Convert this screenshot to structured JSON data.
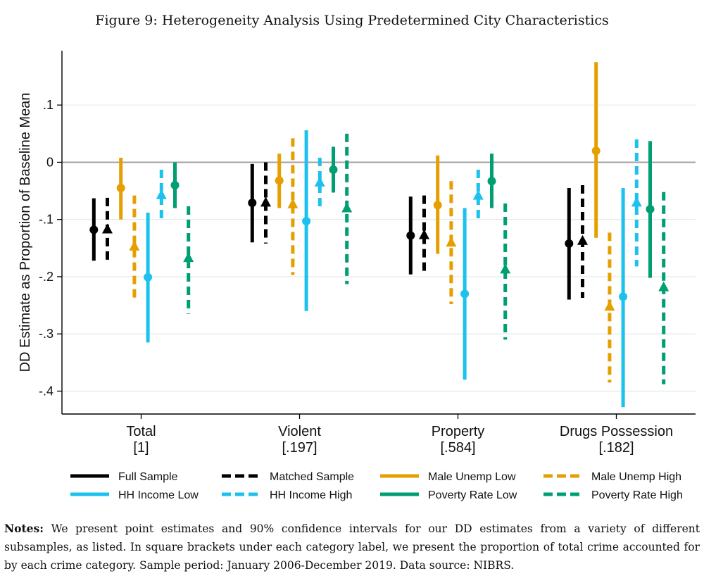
{
  "figure": {
    "title": "Figure 9: Heterogeneity Analysis Using Predetermined City Characteristics",
    "notes_label": "Notes:",
    "notes_text": "We present point estimates and 90% confidence intervals for our DD estimates from a variety of different subsamples, as listed. In square brackets under each category label, we present the proportion of total crime accounted for by each crime category. Sample period: January 2006-December 2019. Data source: NIBRS."
  },
  "chart_data": {
    "type": "errorbar",
    "ylabel": "DD Estimate as Proportion of Baseline Mean",
    "ylim": [
      -0.44,
      0.195
    ],
    "yticks": [
      0.1,
      0,
      -0.1,
      -0.2,
      -0.3,
      -0.4
    ],
    "ytick_labels": [
      ".1",
      "0",
      "-.1",
      "-.2",
      "-.3",
      "-.4"
    ],
    "zero_line": true,
    "grid": "horizontal",
    "categories": [
      {
        "name": "Total",
        "share": "[1]"
      },
      {
        "name": "Violent",
        "share": "[.197]"
      },
      {
        "name": "Property",
        "share": "[.584]"
      },
      {
        "name": "Drugs Possession",
        "share": "[.182]"
      }
    ],
    "colors": {
      "black": "#000000",
      "orange": "#E69F00",
      "blue": "#1CC1EE",
      "green": "#009E73"
    },
    "series": [
      {
        "name": "Full Sample",
        "color": "black",
        "dashed": false,
        "marker": "circle",
        "points": [
          {
            "est": -0.118,
            "lo": -0.172,
            "hi": -0.063
          },
          {
            "est": -0.071,
            "lo": -0.14,
            "hi": -0.003
          },
          {
            "est": -0.128,
            "lo": -0.196,
            "hi": -0.06
          },
          {
            "est": -0.142,
            "lo": -0.24,
            "hi": -0.045
          }
        ]
      },
      {
        "name": "Matched Sample",
        "color": "black",
        "dashed": true,
        "marker": "triangle",
        "points": [
          {
            "est": -0.117,
            "lo": -0.172,
            "hi": -0.062
          },
          {
            "est": -0.07,
            "lo": -0.142,
            "hi": 0.0
          },
          {
            "est": -0.127,
            "lo": -0.197,
            "hi": -0.058
          },
          {
            "est": -0.137,
            "lo": -0.237,
            "hi": -0.04
          }
        ]
      },
      {
        "name": "Male Unemp Low",
        "color": "orange",
        "dashed": false,
        "marker": "circle",
        "points": [
          {
            "est": -0.045,
            "lo": -0.1,
            "hi": 0.008
          },
          {
            "est": -0.032,
            "lo": -0.08,
            "hi": 0.015
          },
          {
            "est": -0.075,
            "lo": -0.16,
            "hi": 0.012
          },
          {
            "est": 0.02,
            "lo": -0.132,
            "hi": 0.175
          }
        ]
      },
      {
        "name": "Male Unemp High",
        "color": "orange",
        "dashed": true,
        "marker": "triangle",
        "points": [
          {
            "est": -0.147,
            "lo": -0.238,
            "hi": -0.058
          },
          {
            "est": -0.073,
            "lo": -0.197,
            "hi": 0.042
          },
          {
            "est": -0.14,
            "lo": -0.248,
            "hi": -0.033
          },
          {
            "est": -0.252,
            "lo": -0.385,
            "hi": -0.123
          }
        ]
      },
      {
        "name": "HH Income Low",
        "color": "blue",
        "dashed": false,
        "marker": "circle",
        "points": [
          {
            "est": -0.201,
            "lo": -0.315,
            "hi": -0.088
          },
          {
            "est": -0.103,
            "lo": -0.26,
            "hi": 0.056
          },
          {
            "est": -0.23,
            "lo": -0.38,
            "hi": -0.08
          },
          {
            "est": -0.235,
            "lo": -0.428,
            "hi": -0.045
          }
        ]
      },
      {
        "name": "HH Income High",
        "color": "blue",
        "dashed": true,
        "marker": "triangle",
        "points": [
          {
            "est": -0.057,
            "lo": -0.1,
            "hi": -0.013
          },
          {
            "est": -0.035,
            "lo": -0.08,
            "hi": 0.008
          },
          {
            "est": -0.058,
            "lo": -0.105,
            "hi": -0.013
          },
          {
            "est": -0.07,
            "lo": -0.182,
            "hi": 0.04
          }
        ]
      },
      {
        "name": "Poverty Rate Low",
        "color": "green",
        "dashed": false,
        "marker": "circle",
        "points": [
          {
            "est": -0.04,
            "lo": -0.08,
            "hi": 0.0
          },
          {
            "est": -0.013,
            "lo": -0.053,
            "hi": 0.027
          },
          {
            "est": -0.033,
            "lo": -0.08,
            "hi": 0.015
          },
          {
            "est": -0.082,
            "lo": -0.202,
            "hi": 0.037
          }
        ]
      },
      {
        "name": "Poverty Rate High",
        "color": "green",
        "dashed": true,
        "marker": "triangle",
        "points": [
          {
            "est": -0.167,
            "lo": -0.265,
            "hi": -0.077
          },
          {
            "est": -0.08,
            "lo": -0.213,
            "hi": 0.05
          },
          {
            "est": -0.187,
            "lo": -0.31,
            "hi": -0.072
          },
          {
            "est": -0.218,
            "lo": -0.388,
            "hi": -0.052
          }
        ]
      }
    ],
    "legend": {
      "placement": "bottom",
      "order": [
        "Full Sample",
        "Matched Sample",
        "Male Unemp Low",
        "Male Unemp High",
        "HH Income Low",
        "HH Income High",
        "Poverty Rate Low",
        "Poverty Rate High"
      ]
    }
  }
}
